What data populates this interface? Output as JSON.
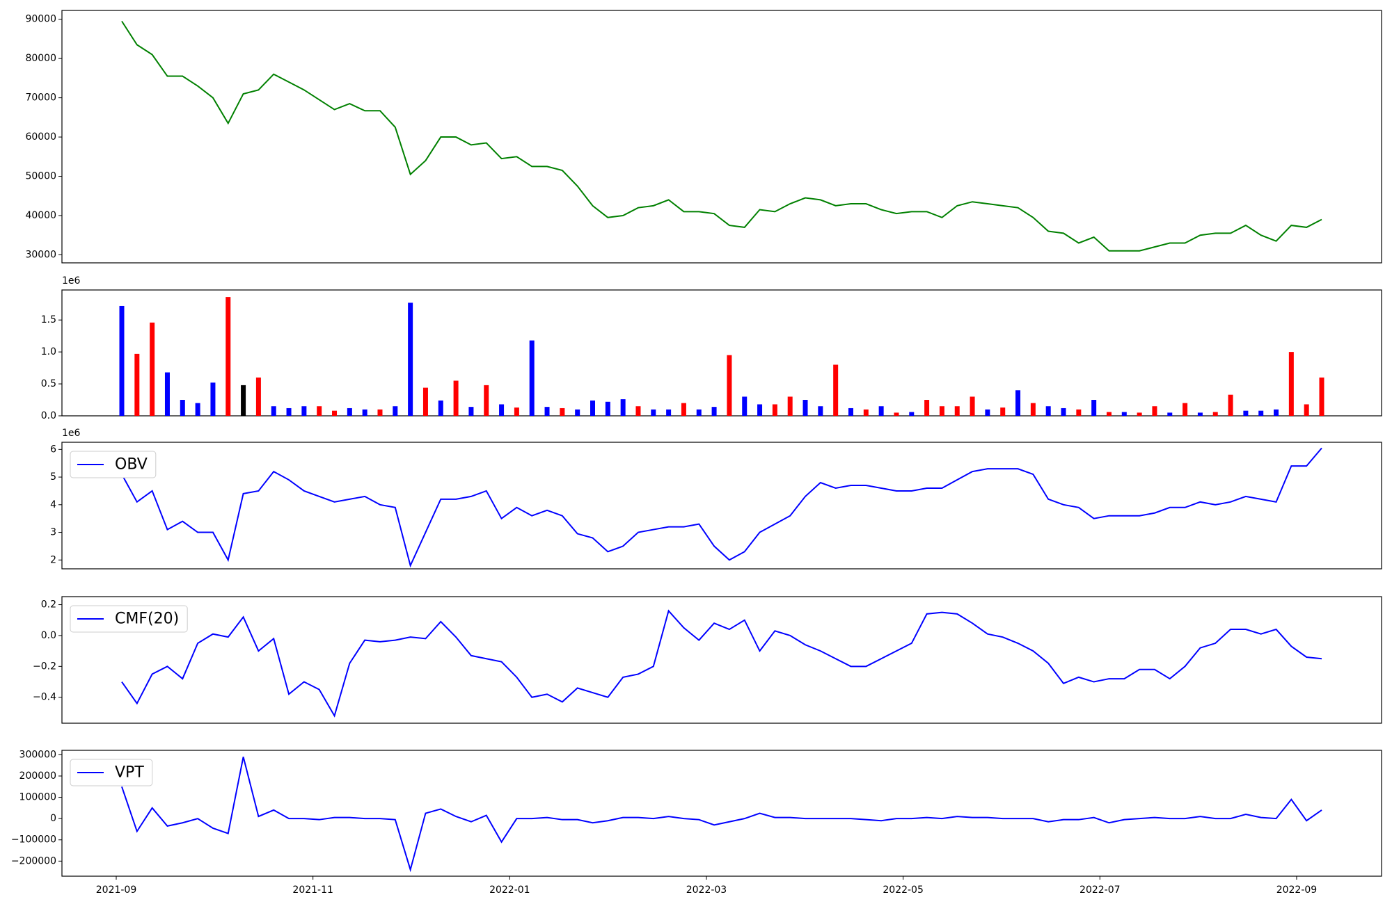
{
  "chart_data": [
    {
      "type": "line",
      "color": "#008000",
      "values": [
        89500,
        83500,
        81000,
        75500,
        75500,
        73000,
        70000,
        63500,
        71000,
        72000,
        76000,
        74000,
        72000,
        69500,
        67000,
        68500,
        66700,
        66700,
        62500,
        50500,
        54000,
        60000,
        60000,
        58000,
        58500,
        54500,
        55000,
        52500,
        52500,
        51500,
        47500,
        42500,
        39500,
        40000,
        42000,
        42500,
        44000,
        41000,
        41000,
        40500,
        37500,
        37000,
        41500,
        41000,
        43000,
        44500,
        44000,
        42500,
        43000,
        43000,
        41500,
        40500,
        41000,
        41000,
        39500,
        42500,
        43500,
        43000,
        42500,
        42000,
        39500,
        36000,
        35500,
        33000,
        34500,
        31000,
        31000,
        31000,
        32000,
        33000,
        33000,
        35000,
        35500,
        35500,
        37500,
        35000,
        33500,
        37500,
        37000,
        39000
      ],
      "ylim": [
        27950,
        92250
      ],
      "yticks": [
        30000,
        40000,
        50000,
        60000,
        70000,
        80000,
        90000
      ]
    },
    {
      "type": "bar",
      "offset_text": "1e6",
      "values": [
        1.72,
        0.97,
        1.46,
        0.68,
        0.25,
        0.2,
        0.52,
        1.86,
        0.48,
        0.6,
        0.15,
        0.12,
        0.15,
        0.15,
        0.08,
        0.12,
        0.1,
        0.1,
        0.15,
        1.77,
        0.44,
        0.24,
        0.55,
        0.14,
        0.48,
        0.18,
        0.13,
        1.18,
        0.14,
        0.12,
        0.1,
        0.24,
        0.22,
        0.26,
        0.15,
        0.1,
        0.1,
        0.2,
        0.1,
        0.14,
        0.95,
        0.3,
        0.18,
        0.18,
        0.3,
        0.25,
        0.15,
        0.8,
        0.12,
        0.1,
        0.15,
        0.05,
        0.06,
        0.25,
        0.15,
        0.15,
        0.3,
        0.1,
        0.13,
        0.4,
        0.2,
        0.15,
        0.12,
        0.1,
        0.25,
        0.06,
        0.06,
        0.05,
        0.15,
        0.05,
        0.2,
        0.05,
        0.06,
        0.33,
        0.08,
        0.08,
        0.1,
        1.0,
        0.18,
        0.6
      ],
      "colors": [
        "blue",
        "red",
        "red",
        "blue",
        "blue",
        "blue",
        "blue",
        "red",
        "black",
        "red",
        "blue",
        "blue",
        "blue",
        "red",
        "red",
        "blue",
        "blue",
        "red",
        "blue",
        "blue",
        "red",
        "blue",
        "red",
        "blue",
        "red",
        "blue",
        "red",
        "blue",
        "blue",
        "red",
        "blue",
        "blue",
        "blue",
        "blue",
        "red",
        "blue",
        "blue",
        "red",
        "blue",
        "blue",
        "red",
        "blue",
        "blue",
        "red",
        "red",
        "blue",
        "blue",
        "red",
        "blue",
        "red",
        "blue",
        "red",
        "blue",
        "red",
        "red",
        "red",
        "red",
        "blue",
        "red",
        "blue",
        "red",
        "blue",
        "blue",
        "red",
        "blue",
        "red",
        "blue",
        "red",
        "red",
        "blue",
        "red",
        "blue",
        "red",
        "red",
        "blue",
        "blue",
        "blue",
        "red",
        "red",
        "red"
      ],
      "ylim": [
        0,
        1.97
      ],
      "yticks": [
        {
          "value": 0,
          "label": "0.0"
        },
        {
          "value": 0.5,
          "label": "0.5"
        },
        {
          "value": 1,
          "label": "1.0"
        },
        {
          "value": 1.5,
          "label": "1.5"
        }
      ]
    },
    {
      "type": "line",
      "offset_text": "1e6",
      "legend": "upper left",
      "series": [
        {
          "name": "OBV",
          "color": "#0000ff",
          "values": [
            5.1,
            4.1,
            4.5,
            3.1,
            3.4,
            3.0,
            3.0,
            2.0,
            4.4,
            4.5,
            5.2,
            4.9,
            4.5,
            4.3,
            4.1,
            4.2,
            4.3,
            4.0,
            3.9,
            1.8,
            3.0,
            4.2,
            4.2,
            4.3,
            4.5,
            3.5,
            3.9,
            3.6,
            3.8,
            3.6,
            2.95,
            2.8,
            2.3,
            2.5,
            3.0,
            3.1,
            3.2,
            3.2,
            3.3,
            2.5,
            2.0,
            2.3,
            3.0,
            3.3,
            3.6,
            4.3,
            4.8,
            4.6,
            4.7,
            4.7,
            4.6,
            4.5,
            4.5,
            4.6,
            4.6,
            4.9,
            5.2,
            5.3,
            5.3,
            5.3,
            5.1,
            4.2,
            4.0,
            3.9,
            3.5,
            3.6,
            3.6,
            3.6,
            3.7,
            3.9,
            3.9,
            4.1,
            4.0,
            4.1,
            4.3,
            4.2,
            4.1,
            5.4,
            5.4,
            6.05
          ]
        }
      ],
      "ylim": [
        1.68,
        6.26
      ],
      "yticks": [
        2,
        3,
        4,
        5,
        6
      ]
    },
    {
      "type": "line",
      "legend": "upper left",
      "series": [
        {
          "name": "CMF(20)",
          "color": "#0000ff",
          "values": [
            -0.3,
            -0.44,
            -0.25,
            -0.2,
            -0.28,
            -0.05,
            0.01,
            -0.01,
            0.12,
            -0.1,
            -0.02,
            -0.38,
            -0.3,
            -0.35,
            -0.52,
            -0.18,
            -0.03,
            -0.04,
            -0.03,
            -0.01,
            -0.02,
            0.09,
            -0.01,
            -0.13,
            -0.15,
            -0.17,
            -0.27,
            -0.4,
            -0.38,
            -0.43,
            -0.34,
            -0.37,
            -0.4,
            -0.27,
            -0.25,
            -0.2,
            0.16,
            0.05,
            -0.03,
            0.08,
            0.04,
            0.1,
            -0.1,
            0.03,
            0.0,
            -0.06,
            -0.1,
            -0.15,
            -0.2,
            -0.2,
            -0.15,
            -0.1,
            -0.05,
            0.14,
            0.15,
            0.14,
            0.08,
            0.01,
            -0.01,
            -0.05,
            -0.1,
            -0.18,
            -0.31,
            -0.27,
            -0.3,
            -0.28,
            -0.28,
            -0.22,
            -0.22,
            -0.28,
            -0.2,
            -0.08,
            -0.05,
            0.04,
            0.04,
            0.01,
            0.04,
            -0.07,
            -0.14,
            -0.15
          ]
        }
      ],
      "ylim": [
        -0.568,
        0.252
      ],
      "yticks": [
        {
          "value": -0.4,
          "label": "−0.4"
        },
        {
          "value": -0.2,
          "label": "−0.2"
        },
        {
          "value": 0,
          "label": "0.0"
        },
        0.2
      ]
    },
    {
      "type": "line",
      "legend": "upper left",
      "series": [
        {
          "name": "VPT",
          "color": "#0000ff",
          "values": [
            150000,
            -60000,
            50000,
            -35000,
            -20000,
            0,
            -45000,
            -70000,
            290000,
            10000,
            40000,
            0,
            0,
            -5000,
            5000,
            5000,
            0,
            0,
            -5000,
            -240000,
            25000,
            45000,
            10000,
            -15000,
            15000,
            -110000,
            0,
            0,
            5000,
            -5000,
            -5000,
            -20000,
            -10000,
            5000,
            5000,
            0,
            10000,
            0,
            -5000,
            -30000,
            -15000,
            0,
            25000,
            5000,
            5000,
            0,
            0,
            0,
            0,
            -5000,
            -10000,
            0,
            0,
            5000,
            0,
            10000,
            5000,
            5000,
            0,
            0,
            0,
            -15000,
            -5000,
            -5000,
            5000,
            -20000,
            -5000,
            0,
            5000,
            0,
            0,
            10000,
            0,
            0,
            20000,
            5000,
            0,
            90000,
            -10000,
            40000
          ]
        }
      ],
      "ylim": [
        -270800,
        320800
      ],
      "yticks": [
        {
          "value": -200000,
          "label": "−200000"
        },
        {
          "value": -100000,
          "label": "−100000"
        },
        0,
        100000,
        200000,
        300000
      ],
      "xticks": [
        "2021-09",
        "2021-11",
        "2022-01",
        "2022-03",
        "2022-05",
        "2022-07",
        "2022-09"
      ]
    }
  ]
}
